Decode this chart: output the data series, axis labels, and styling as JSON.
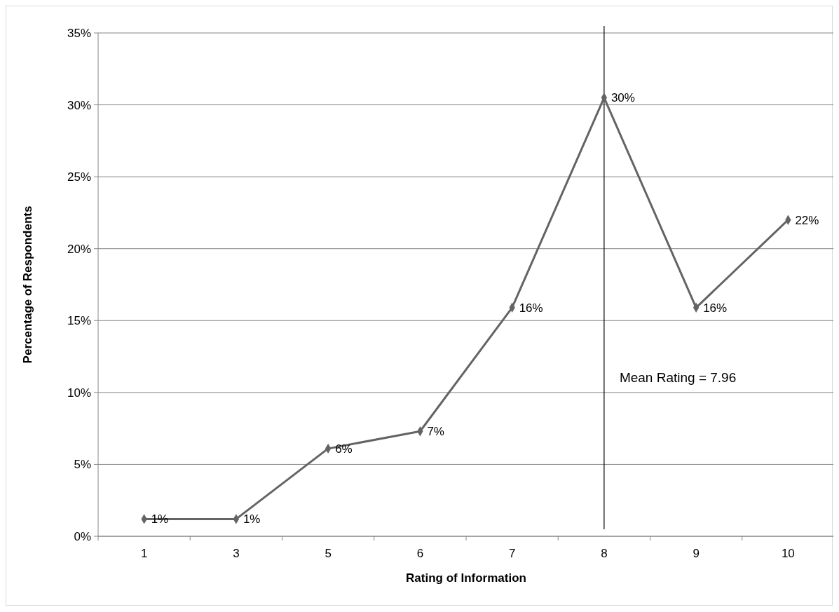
{
  "chart_data": {
    "type": "line",
    "xlabel": "Rating of Information",
    "ylabel": "Percentage of Respondents",
    "categories": [
      "1",
      "3",
      "5",
      "6",
      "7",
      "8",
      "9",
      "10"
    ],
    "series": [
      {
        "color": "#646464",
        "values": [
          1.2,
          1.2,
          6.1,
          7.3,
          15.9,
          30.5,
          15.9,
          22.0
        ],
        "value_labels": [
          "1%",
          "1%",
          "6%",
          "7%",
          "16%",
          "30%",
          "16%",
          "22%"
        ]
      }
    ],
    "ylim": [
      0,
      35
    ],
    "yticks": [
      {
        "value": 0,
        "label": "0%"
      },
      {
        "value": 5,
        "label": "5%"
      },
      {
        "value": 10,
        "label": "10%"
      },
      {
        "value": 15,
        "label": "15%"
      },
      {
        "value": 20,
        "label": "20%"
      },
      {
        "value": 25,
        "label": "25%"
      },
      {
        "value": 30,
        "label": "30%"
      },
      {
        "value": 35,
        "label": "35%"
      }
    ],
    "grid": "y",
    "marker": "diamond",
    "line_style": "solid",
    "ref_lines": [
      {
        "axis": "x",
        "value": "8",
        "label": "Mean Rating = 7.96",
        "color": "#000000"
      }
    ]
  }
}
